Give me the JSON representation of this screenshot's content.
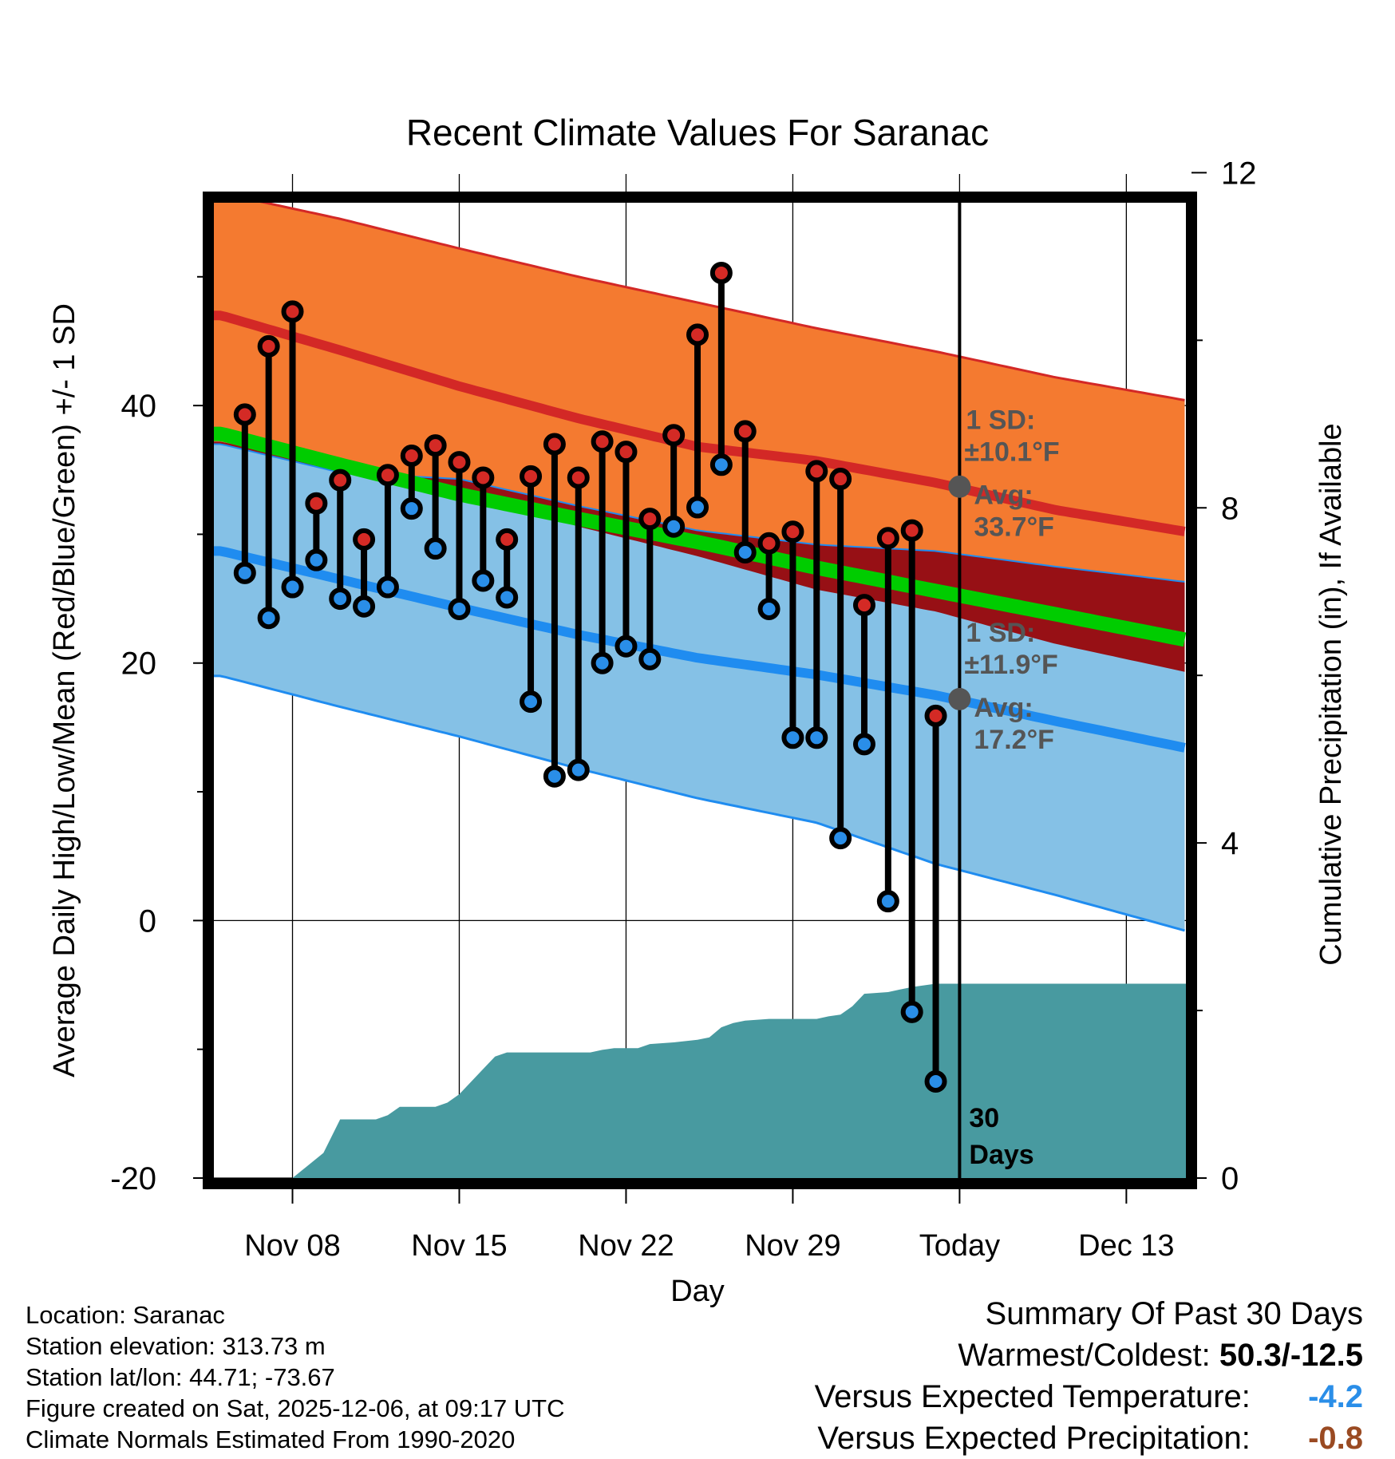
{
  "chart_data": {
    "type": "line",
    "title": "Recent Climate Values For Saranac",
    "xlabel": "Day",
    "ylabel": "Average Daily High/Low/Mean (Red/Blue/Green) +/- 1 SD",
    "y2label": "Cumulative Precipitation (in), If Available",
    "x_ticks": [
      {
        "day": 8,
        "label": "Nov 08"
      },
      {
        "day": 15,
        "label": "Nov 15"
      },
      {
        "day": 22,
        "label": "Nov 22"
      },
      {
        "day": 29,
        "label": "Nov 29"
      },
      {
        "day": 36,
        "label": "Today"
      },
      {
        "day": 43,
        "label": "Dec 13"
      }
    ],
    "x_range": [
      4.7,
      45.5
    ],
    "ylim": [
      -20,
      56
    ],
    "y_ticks": [
      -20,
      0,
      20,
      40
    ],
    "y2lim": [
      0,
      11.68
    ],
    "y2_ticks": [
      0,
      4,
      8,
      12
    ],
    "today_day": 36,
    "normals": {
      "days": [
        5,
        10,
        15,
        20,
        25,
        30,
        35,
        40,
        45.5
      ],
      "high_avg": [
        47,
        44.3,
        41.5,
        39,
        36.8,
        35.7,
        34.0,
        31.9,
        30.2
      ],
      "high_upper": [
        56.5,
        54.5,
        52.2,
        50,
        48,
        46,
        44.2,
        42.2,
        40.4
      ],
      "low_avg": [
        28.7,
        26.5,
        24.3,
        22.2,
        20.4,
        19.1,
        17.5,
        15.5,
        13.4
      ],
      "low_lower": [
        19,
        16.6,
        14.3,
        11.8,
        9.5,
        7.6,
        4.4,
        2.0,
        -0.8
      ],
      "mean_avg": [
        37.8,
        35.4,
        33.1,
        31.2,
        29.4,
        27.4,
        25.6,
        23.8,
        21.8
      ],
      "upper_blue": [
        37,
        34.8,
        34.3,
        32.2,
        30.3,
        29.2,
        28.7,
        27.5,
        26.3
      ],
      "lower_red": [
        37.2,
        35.1,
        33.7,
        30.6,
        28.3,
        25.7,
        24.0,
        21.5,
        19.3
      ]
    },
    "high_sd_label": {
      "sd": "1 SD:",
      "sd_value": "±10.1°F",
      "avg": "Avg:",
      "avg_value": "33.7°F",
      "avg_temp": 33.7
    },
    "low_sd_label": {
      "sd": "1 SD:",
      "sd_value": "±11.9°F",
      "avg": "Avg:",
      "avg_value": "17.2°F",
      "avg_temp": 17.2
    },
    "daily": [
      {
        "day": 6,
        "high": 39.3,
        "low": 27.0
      },
      {
        "day": 7,
        "high": 44.6,
        "low": 23.5
      },
      {
        "day": 8,
        "high": 47.3,
        "low": 25.9
      },
      {
        "day": 9,
        "high": 32.4,
        "low": 28.0
      },
      {
        "day": 10,
        "high": 34.2,
        "low": 25.0
      },
      {
        "day": 11,
        "high": 29.6,
        "low": 24.4
      },
      {
        "day": 12,
        "high": 34.6,
        "low": 25.9
      },
      {
        "day": 13,
        "high": 36.1,
        "low": 32.0
      },
      {
        "day": 14,
        "high": 36.9,
        "low": 28.9
      },
      {
        "day": 15,
        "high": 35.6,
        "low": 24.2
      },
      {
        "day": 16,
        "high": 34.4,
        "low": 26.4
      },
      {
        "day": 17,
        "high": 29.6,
        "low": 25.1
      },
      {
        "day": 18,
        "high": 34.5,
        "low": 17.0
      },
      {
        "day": 19,
        "high": 37.0,
        "low": 11.2
      },
      {
        "day": 20,
        "high": 34.4,
        "low": 11.7
      },
      {
        "day": 21,
        "high": 37.2,
        "low": 20.0
      },
      {
        "day": 22,
        "high": 36.4,
        "low": 21.3
      },
      {
        "day": 23,
        "high": 31.2,
        "low": 20.3
      },
      {
        "day": 24,
        "high": 37.7,
        "low": 30.6
      },
      {
        "day": 25,
        "high": 45.5,
        "low": 32.1
      },
      {
        "day": 26,
        "high": 50.3,
        "low": 35.4
      },
      {
        "day": 27,
        "high": 38.0,
        "low": 28.6
      },
      {
        "day": 28,
        "high": 29.3,
        "low": 24.2
      },
      {
        "day": 29,
        "high": 30.2,
        "low": 14.2
      },
      {
        "day": 30,
        "high": 34.9,
        "low": 14.2
      },
      {
        "day": 31,
        "high": 34.3,
        "low": 6.4
      },
      {
        "day": 32,
        "high": 24.5,
        "low": 13.7
      },
      {
        "day": 33,
        "high": 29.7,
        "low": 1.5
      },
      {
        "day": 34,
        "high": 30.3,
        "low": -7.1
      },
      {
        "day": 35,
        "high": 15.9,
        "low": -12.5
      }
    ],
    "precip": {
      "days": [
        4.7,
        8.0,
        9.3,
        10.0,
        10.8,
        11.5,
        12.0,
        12.5,
        13.0,
        13.5,
        14.0,
        14.5,
        15.0,
        15.5,
        16.0,
        16.5,
        17.0,
        18.0,
        19.0,
        20.0,
        20.5,
        21.0,
        21.5,
        22.0,
        22.5,
        23.0,
        24.0,
        25.0,
        25.5,
        26.0,
        26.5,
        27.0,
        28.0,
        29.0,
        30.0,
        30.5,
        31.0,
        31.5,
        32.0,
        33.0,
        33.5,
        34.0,
        35.0,
        36.0,
        45.5
      ],
      "values": [
        0,
        0,
        0.3,
        0.7,
        0.7,
        0.7,
        0.75,
        0.85,
        0.85,
        0.85,
        0.85,
        0.9,
        1.0,
        1.15,
        1.3,
        1.45,
        1.5,
        1.5,
        1.5,
        1.5,
        1.5,
        1.53,
        1.55,
        1.55,
        1.55,
        1.6,
        1.62,
        1.65,
        1.68,
        1.8,
        1.85,
        1.88,
        1.9,
        1.9,
        1.9,
        1.93,
        1.95,
        2.05,
        2.2,
        2.22,
        2.25,
        2.28,
        2.32,
        2.32,
        2.32
      ]
    },
    "precip_label": "30\nDays",
    "precip_label_1": "30",
    "precip_label_2": "Days"
  },
  "info": {
    "location": "Location: Saranac",
    "elevation": "Station elevation: 313.73 m",
    "latlon": "Station lat/lon: 44.71; -73.67",
    "created": "Figure created on Sat, 2025-12-06, at 09:17 UTC",
    "normals": "Climate Normals Estimated From 1990-2020"
  },
  "summary": {
    "heading": "Summary Of Past 30 Days",
    "warmest_label": "Warmest/Coldest:",
    "warmest_value": "50.3/-12.5",
    "temp_label": "Versus Expected Temperature:",
    "temp_value": "-4.2",
    "precip_label": "Versus Expected Precipitation:",
    "precip_value": "-0.8"
  },
  "colors": {
    "high_band": "#f47a30",
    "high_line": "#d32826",
    "low_band": "#85c1e6",
    "low_line": "#1f8cf0",
    "mean_line": "#00cc00",
    "overlap": "#971015",
    "precip": "#489aa0",
    "high_dot": "#d42a25",
    "low_dot": "#2a8ee8",
    "label_gray": "#555555",
    "temp_anom": "#2a8ee8",
    "precip_anom": "#9a4a22"
  }
}
